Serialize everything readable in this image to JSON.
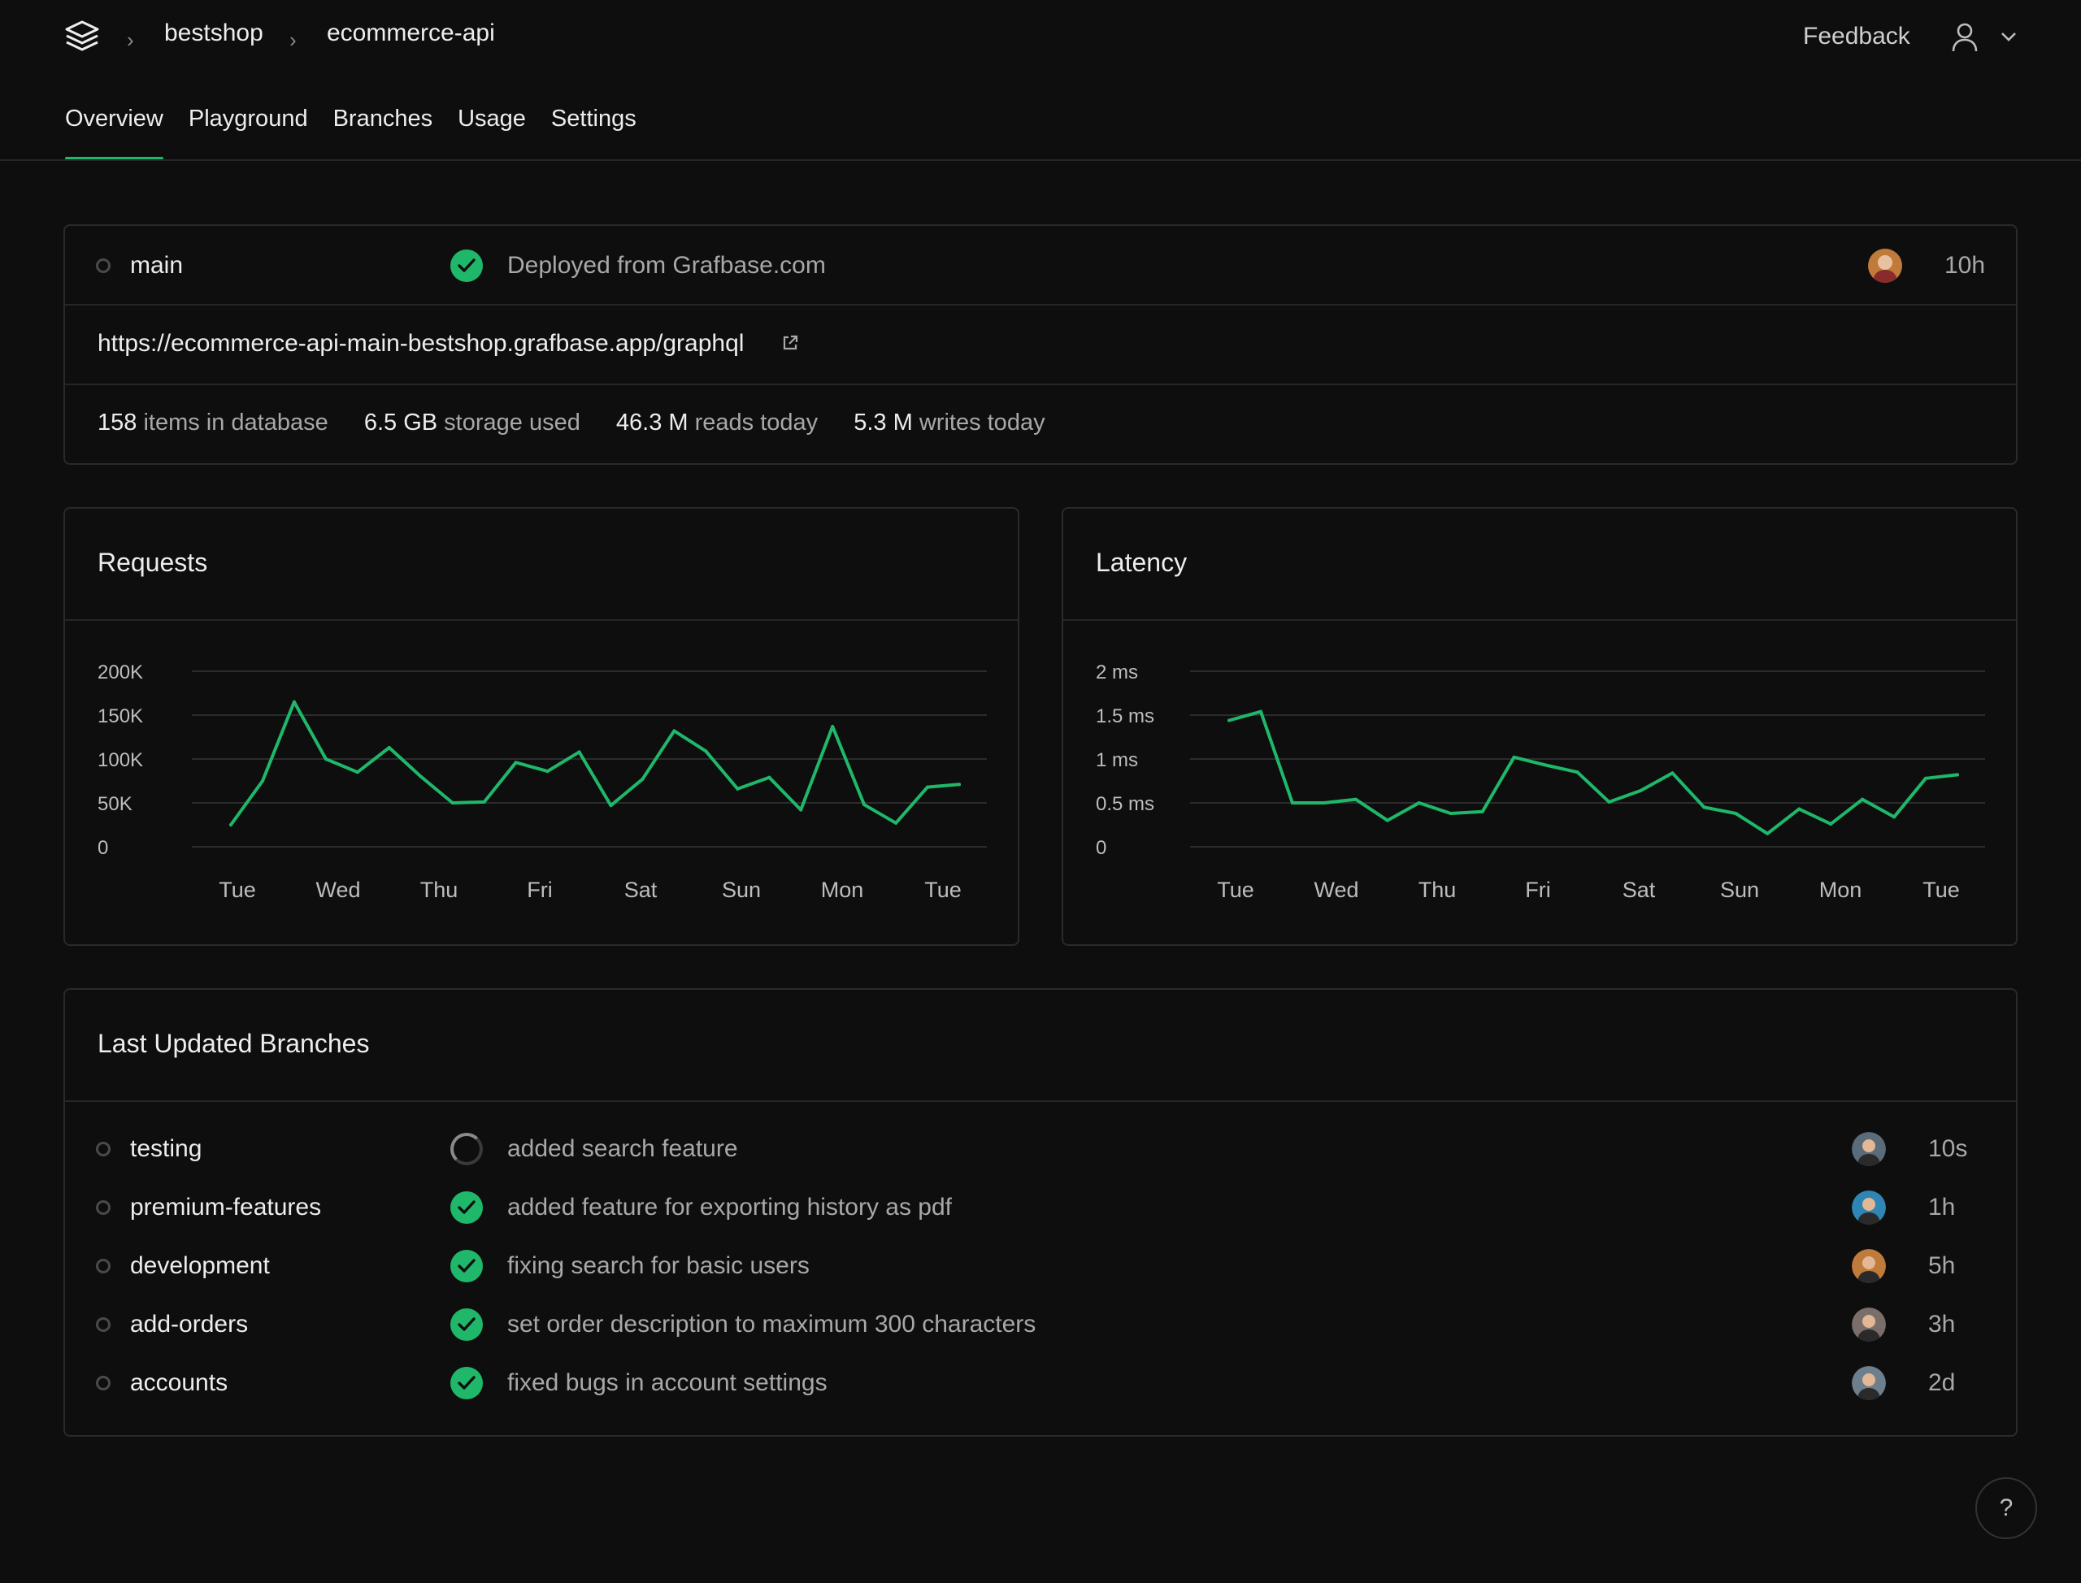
{
  "breadcrumb": {
    "org": "bestshop",
    "project": "ecommerce-api"
  },
  "header": {
    "feedback_label": "Feedback"
  },
  "tabs": [
    {
      "label": "Overview",
      "active": true
    },
    {
      "label": "Playground"
    },
    {
      "label": "Branches"
    },
    {
      "label": "Usage"
    },
    {
      "label": "Settings"
    }
  ],
  "deployment": {
    "branch": "main",
    "status_text": "Deployed from Grafbase.com",
    "age": "10h",
    "url": "https://ecommerce-api-main-bestshop.grafbase.app/graphql",
    "stats": [
      {
        "value": "158",
        "label": "items in database"
      },
      {
        "value": "6.5 GB",
        "label": "storage used"
      },
      {
        "value": "46.3 M",
        "label": "reads today"
      },
      {
        "value": "5.3 M",
        "label": "writes today"
      }
    ]
  },
  "requests_card": {
    "title": "Requests"
  },
  "latency_card": {
    "title": "Latency"
  },
  "chart_data": [
    {
      "type": "line",
      "title": "Requests",
      "color": "#1fb86a",
      "y_ticks": [
        "200K",
        "150K",
        "100K",
        "50K",
        "0"
      ],
      "ylim": [
        0,
        200000
      ],
      "x_ticks": [
        "Tue",
        "Wed",
        "Thu",
        "Fri",
        "Sat",
        "Sun",
        "Mon",
        "Tue"
      ],
      "grid": true,
      "values": [
        25000,
        75000,
        165000,
        100000,
        85000,
        113000,
        80000,
        50000,
        51000,
        96000,
        86000,
        108000,
        47000,
        77000,
        132000,
        109000,
        66000,
        79000,
        42000,
        137000,
        48000,
        27000,
        68000,
        71000
      ]
    },
    {
      "type": "line",
      "title": "Latency",
      "color": "#1fb86a",
      "y_ticks": [
        "2 ms",
        "1.5 ms",
        "1 ms",
        "0.5 ms",
        "0"
      ],
      "ylim": [
        0,
        2
      ],
      "x_ticks": [
        "Tue",
        "Wed",
        "Thu",
        "Fri",
        "Sat",
        "Sun",
        "Mon",
        "Tue"
      ],
      "grid": true,
      "values": [
        1.44,
        1.54,
        0.5,
        0.5,
        0.54,
        0.3,
        0.5,
        0.38,
        0.4,
        1.02,
        0.93,
        0.85,
        0.51,
        0.64,
        0.84,
        0.45,
        0.38,
        0.15,
        0.43,
        0.26,
        0.54,
        0.34,
        0.78,
        0.82
      ]
    }
  ],
  "branches_card": {
    "title": "Last Updated Branches",
    "items": [
      {
        "name": "testing",
        "status": "pending",
        "message": "added search feature",
        "age": "10s",
        "avatar_color": "#5a6b7a"
      },
      {
        "name": "premium-features",
        "status": "success",
        "message": "added feature for exporting history as pdf",
        "age": "1h",
        "avatar_color": "#2f86b5"
      },
      {
        "name": "development",
        "status": "success",
        "message": "fixing search for basic users",
        "age": "5h",
        "avatar_color": "#c07a3a"
      },
      {
        "name": "add-orders",
        "status": "success",
        "message": "set order description to maximum 300 characters",
        "age": "3h",
        "avatar_color": "#7a6e6a"
      },
      {
        "name": "accounts",
        "status": "success",
        "message": "fixed bugs in account settings",
        "age": "2d",
        "avatar_color": "#6d7f8c"
      }
    ]
  },
  "help": {
    "label": "?"
  }
}
